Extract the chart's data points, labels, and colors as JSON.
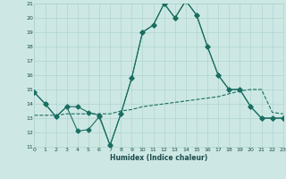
{
  "xlabel": "Humidex (Indice chaleur)",
  "bg_color": "#cde8e4",
  "line_color": "#1a6e62",
  "grid_color": "#b0d4ce",
  "xmin": 0,
  "xmax": 23,
  "ymin": 11,
  "ymax": 21,
  "line1_x": [
    0,
    1,
    2,
    3,
    4,
    5,
    6,
    7,
    8,
    9,
    10,
    11,
    12,
    13,
    14,
    15,
    16,
    17,
    18,
    19,
    20,
    21,
    22,
    23
  ],
  "line1_y": [
    14.8,
    14.0,
    13.1,
    13.8,
    13.8,
    13.4,
    13.2,
    11.1,
    13.3,
    15.8,
    19.0,
    19.5,
    21.0,
    20.0,
    21.2,
    20.2,
    18.0,
    16.0,
    15.0,
    15.0,
    13.8,
    13.0,
    13.0,
    13.0
  ],
  "line2_x": [
    0,
    1,
    2,
    3,
    4,
    5,
    6,
    7,
    8,
    9,
    10,
    11,
    12,
    13,
    14,
    15,
    16,
    17,
    18,
    19,
    20,
    21,
    22,
    23
  ],
  "line2_y": [
    14.8,
    14.0,
    13.1,
    13.8,
    12.1,
    12.2,
    13.1,
    11.1,
    13.3,
    15.8,
    19.0,
    19.5,
    21.0,
    20.0,
    21.2,
    20.2,
    18.0,
    16.0,
    15.0,
    15.0,
    13.8,
    13.0,
    13.0,
    13.0
  ],
  "line3_x": [
    0,
    1,
    2,
    3,
    4,
    5,
    6,
    7,
    8,
    9,
    10,
    11,
    12,
    13,
    14,
    15,
    16,
    17,
    18,
    19,
    20,
    21,
    22,
    23
  ],
  "line3_y": [
    13.2,
    13.2,
    13.2,
    13.3,
    13.3,
    13.3,
    13.3,
    13.3,
    13.5,
    13.6,
    13.8,
    13.9,
    14.0,
    14.1,
    14.2,
    14.3,
    14.4,
    14.5,
    14.7,
    14.9,
    15.0,
    15.0,
    13.4,
    13.3
  ]
}
